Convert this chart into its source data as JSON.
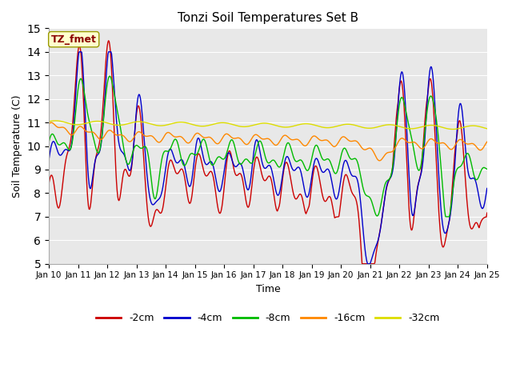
{
  "title": "Tonzi Soil Temperatures Set B",
  "xlabel": "Time",
  "ylabel": "Soil Temperature (C)",
  "ylim": [
    5.0,
    15.0
  ],
  "yticks": [
    5.0,
    6.0,
    7.0,
    8.0,
    9.0,
    10.0,
    11.0,
    12.0,
    13.0,
    14.0,
    15.0
  ],
  "plot_bg_color": "#e8e8e8",
  "fig_bg_color": "#ffffff",
  "legend_label": "TZ_fmet",
  "series_colors": {
    "-2cm": "#cc0000",
    "-4cm": "#0000cc",
    "-8cm": "#00bb00",
    "-16cm": "#ff8800",
    "-32cm": "#dddd00"
  },
  "x_tick_labels": [
    "Jan 10",
    "Jan 11",
    "Jan 12",
    "Jan 13",
    "Jan 14",
    "Jan 15",
    "Jan 16",
    "Jan 17",
    "Jan 18",
    "Jan 19",
    "Jan 20",
    "Jan 21",
    "Jan 22",
    "Jan 23",
    "Jan 24",
    "Jan 25"
  ],
  "n_days": 15
}
